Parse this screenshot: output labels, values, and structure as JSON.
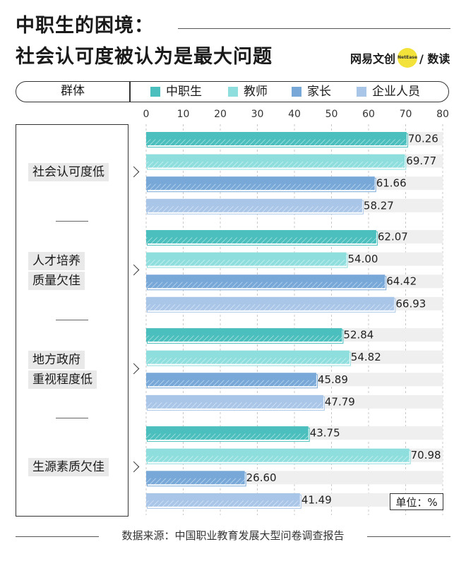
{
  "header": {
    "title_line1": "中职生的困境：",
    "title_line2": "社会认可度被认为是最大问题",
    "logo_left": "网易文创",
    "logo_mid": "NetEase",
    "logo_right": "/ 数读"
  },
  "legend": {
    "group_label": "群体",
    "items": [
      {
        "label": "中职生",
        "color": "#4bbfbd"
      },
      {
        "label": "教师",
        "color": "#8fdede"
      },
      {
        "label": "家长",
        "color": "#77a8d8"
      },
      {
        "label": "企业人员",
        "color": "#a9c6e8"
      }
    ]
  },
  "chart_data": {
    "type": "bar",
    "orientation": "horizontal",
    "title": "中职生的困境：社会认可度被认为是最大问题",
    "categories": [
      [
        "社会认可度低"
      ],
      [
        "人才培养",
        "质量欠佳"
      ],
      [
        "地方政府",
        "重视程度低"
      ],
      [
        "生源素质欠佳"
      ]
    ],
    "series": [
      {
        "name": "中职生",
        "values": [
          70.26,
          62.07,
          52.84,
          43.75
        ]
      },
      {
        "name": "教师",
        "values": [
          69.77,
          54.0,
          54.82,
          70.98
        ]
      },
      {
        "name": "家长",
        "values": [
          61.66,
          64.42,
          45.89,
          26.6
        ]
      },
      {
        "name": "企业人员",
        "values": [
          58.27,
          66.93,
          47.79,
          41.49
        ]
      }
    ],
    "xlim": [
      0,
      80
    ],
    "xticks": [
      0,
      10,
      20,
      30,
      40,
      50,
      60,
      70,
      80
    ],
    "value_labels": [
      [
        "70.26",
        "69.77",
        "61.66",
        "58.27"
      ],
      [
        "62.07",
        "54.00",
        "64.42",
        "66.93"
      ],
      [
        "52.84",
        "54.82",
        "45.89",
        "47.79"
      ],
      [
        "43.75",
        "70.98",
        "26.60",
        "41.49"
      ]
    ],
    "grid": true,
    "unit_label": "单位：%"
  },
  "footer": {
    "source": "数据来源：中国职业教育发展大型问卷调查报告"
  }
}
